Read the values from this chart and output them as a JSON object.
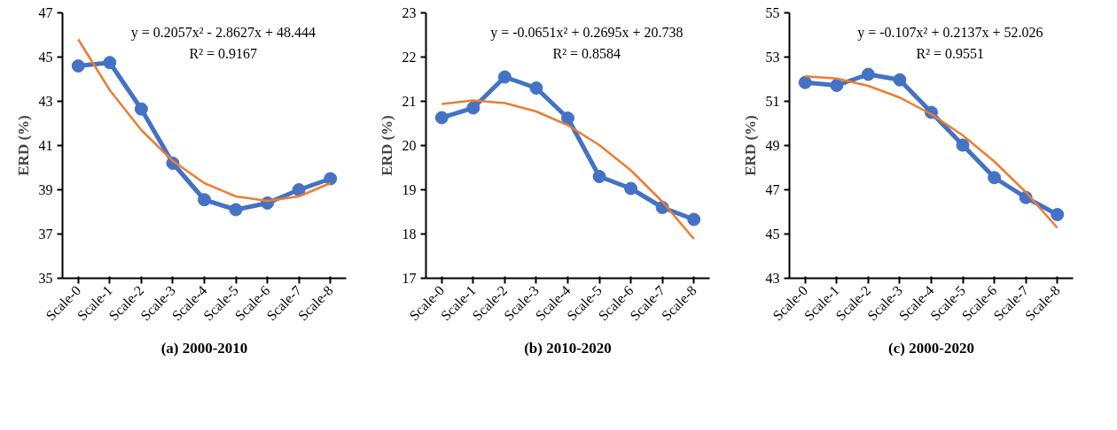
{
  "chart_data": [
    {
      "type": "line",
      "title": "(a) 2000-2010",
      "ylabel": "ERD (%)",
      "categories": [
        "Scale-0",
        "Scale-1",
        "Scale-2",
        "Scale-3",
        "Scale-4",
        "Scale-5",
        "Scale-6",
        "Scale-7",
        "Scale-8"
      ],
      "ylim": [
        35,
        47
      ],
      "yticks": [
        35,
        37,
        39,
        41,
        43,
        45,
        47
      ],
      "annotations": [
        "y = 0.2057x² - 2.8627x + 48.444",
        "R² = 0.9167"
      ],
      "series": [
        {
          "color": "#4472c4",
          "marker": "circle",
          "values": [
            44.6,
            44.75,
            42.65,
            40.2,
            38.55,
            38.1,
            38.4,
            39.0,
            39.5
          ]
        },
        {
          "color": "#ed7d31",
          "marker": "none",
          "values": [
            45.8,
            43.5,
            41.7,
            40.3,
            39.3,
            38.7,
            38.5,
            38.7,
            39.3
          ]
        }
      ]
    },
    {
      "type": "line",
      "title": "(b) 2010-2020",
      "ylabel": "ERD (%)",
      "categories": [
        "Scale-0",
        "Scale-1",
        "Scale-2",
        "Scale-3",
        "Scale-4",
        "Scale-5",
        "Scale-6",
        "Scale-7",
        "Scale-8"
      ],
      "ylim": [
        17,
        23
      ],
      "yticks": [
        17,
        18,
        19,
        20,
        21,
        22,
        23
      ],
      "annotations": [
        "y = -0.0651x² + 0.2695x + 20.738",
        "R² = 0.8584"
      ],
      "series": [
        {
          "color": "#4472c4",
          "marker": "circle",
          "values": [
            20.63,
            20.85,
            21.55,
            21.3,
            20.62,
            19.3,
            19.03,
            18.6,
            18.33
          ]
        },
        {
          "color": "#ed7d31",
          "marker": "none",
          "values": [
            20.94,
            21.02,
            20.96,
            20.77,
            20.46,
            20.01,
            19.44,
            18.73,
            17.89
          ]
        }
      ]
    },
    {
      "type": "line",
      "title": "(c) 2000-2020",
      "ylabel": "ERD (%)",
      "categories": [
        "Scale-0",
        "Scale-1",
        "Scale-2",
        "Scale-3",
        "Scale-4",
        "Scale-5",
        "Scale-6",
        "Scale-7",
        "Scale-8"
      ],
      "ylim": [
        43,
        55
      ],
      "yticks": [
        43,
        45,
        47,
        49,
        51,
        53,
        55
      ],
      "annotations": [
        "y = -0.107x² + 0.2137x + 52.026",
        "R² = 0.9551"
      ],
      "series": [
        {
          "color": "#4472c4",
          "marker": "circle",
          "values": [
            51.85,
            51.72,
            52.22,
            51.97,
            50.5,
            49.02,
            47.55,
            46.65,
            45.88
          ]
        },
        {
          "color": "#ed7d31",
          "marker": "none",
          "values": [
            52.13,
            52.03,
            51.7,
            51.17,
            50.42,
            49.46,
            48.28,
            46.89,
            45.28
          ]
        }
      ]
    }
  ]
}
